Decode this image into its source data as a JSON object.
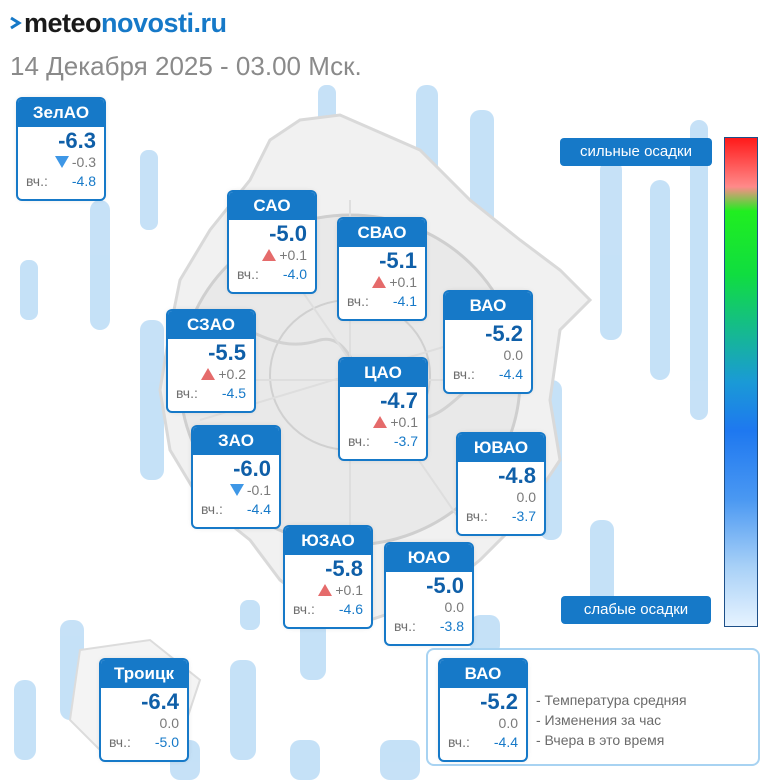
{
  "header": {
    "logo_part1": "meteo",
    "logo_part2": "novosti.ru",
    "subtitle": "14 Декабря 2025 - 03.00 Мск."
  },
  "colors": {
    "brand_blue": "#1679c8",
    "rise_red": "#e56b6b",
    "fall_blue": "#3e97e6"
  },
  "districts": [
    {
      "name": "ЗелАО",
      "temp": "-6.3",
      "trend": "down",
      "change": "-0.3",
      "yday_label": "вч.:",
      "yday": "-4.8"
    },
    {
      "name": "САО",
      "temp": "-5.0",
      "trend": "up",
      "change": "+0.1",
      "yday_label": "вч.:",
      "yday": "-4.0"
    },
    {
      "name": "СВАО",
      "temp": "-5.1",
      "trend": "up",
      "change": "+0.1",
      "yday_label": "вч.:",
      "yday": "-4.1"
    },
    {
      "name": "ВАО",
      "temp": "-5.2",
      "trend": "none",
      "change": "0.0",
      "yday_label": "вч.:",
      "yday": "-4.4"
    },
    {
      "name": "СЗАО",
      "temp": "-5.5",
      "trend": "up",
      "change": "+0.2",
      "yday_label": "вч.:",
      "yday": "-4.5"
    },
    {
      "name": "ЦАО",
      "temp": "-4.7",
      "trend": "up",
      "change": "+0.1",
      "yday_label": "вч.:",
      "yday": "-3.7"
    },
    {
      "name": "ЗАО",
      "temp": "-6.0",
      "trend": "down",
      "change": "-0.1",
      "yday_label": "вч.:",
      "yday": "-4.4"
    },
    {
      "name": "ЮВАО",
      "temp": "-4.8",
      "trend": "none",
      "change": "0.0",
      "yday_label": "вч.:",
      "yday": "-3.7"
    },
    {
      "name": "ЮЗАО",
      "temp": "-5.8",
      "trend": "up",
      "change": "+0.1",
      "yday_label": "вч.:",
      "yday": "-4.6"
    },
    {
      "name": "ЮАО",
      "temp": "-5.0",
      "trend": "none",
      "change": "0.0",
      "yday_label": "вч.:",
      "yday": "-3.8"
    },
    {
      "name": "Троицк",
      "temp": "-6.4",
      "trend": "none",
      "change": "0.0",
      "yday_label": "вч.:",
      "yday": "-5.0"
    }
  ],
  "scale": {
    "top_label": "сильные осадки",
    "bottom_label": "слабые осадки"
  },
  "legend": {
    "sample": {
      "name": "ВАО",
      "temp": "-5.2",
      "trend": "none",
      "change": "0.0",
      "yday_label": "вч.:",
      "yday": "-4.4"
    },
    "line1": "- Температура средняя",
    "line2": "- Изменения за час",
    "line3": "- Вчера в это время"
  }
}
